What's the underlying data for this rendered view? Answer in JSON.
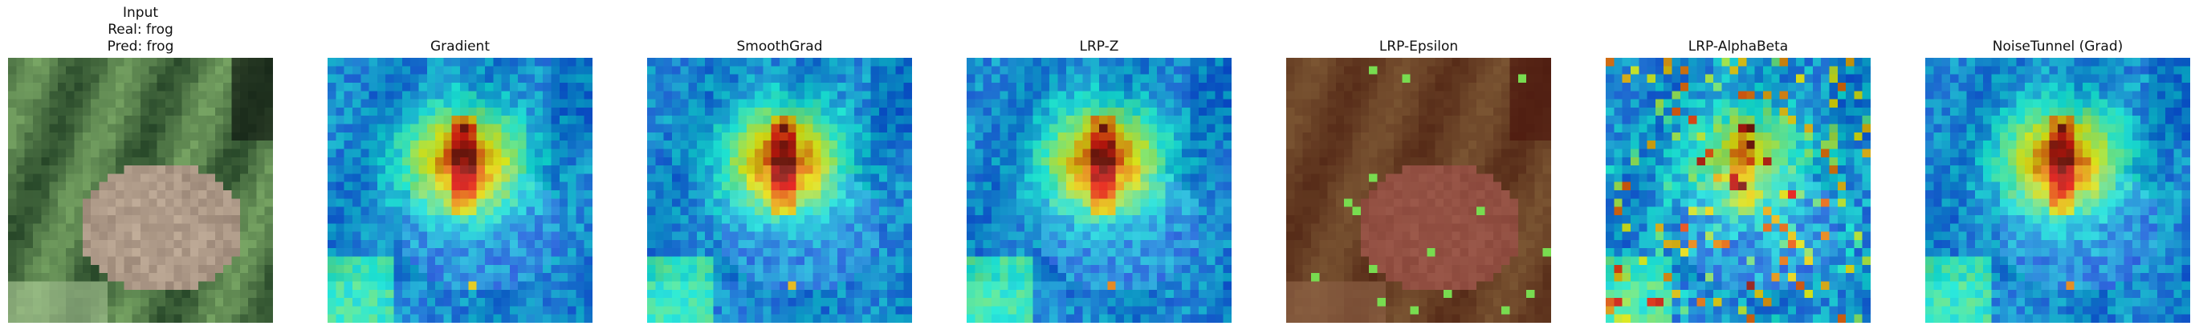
{
  "panels": [
    {
      "id": "input",
      "lines": [
        "Input",
        "Real: frog",
        "Pred: frog"
      ],
      "kind": "photo"
    },
    {
      "id": "gradient",
      "lines": [
        "Gradient"
      ],
      "kind": "heat"
    },
    {
      "id": "smoothgrad",
      "lines": [
        "SmoothGrad"
      ],
      "kind": "heat"
    },
    {
      "id": "lrp-z",
      "lines": [
        "LRP-Z"
      ],
      "kind": "heat"
    },
    {
      "id": "lrp-epsilon",
      "lines": [
        "LRP-Epsilon"
      ],
      "kind": "red"
    },
    {
      "id": "lrp-alphabeta",
      "lines": [
        "LRP-AlphaBeta"
      ],
      "kind": "noisy"
    },
    {
      "id": "noisetunnel",
      "lines": [
        "NoiseTunnel (Grad)"
      ],
      "kind": "heat"
    }
  ]
}
